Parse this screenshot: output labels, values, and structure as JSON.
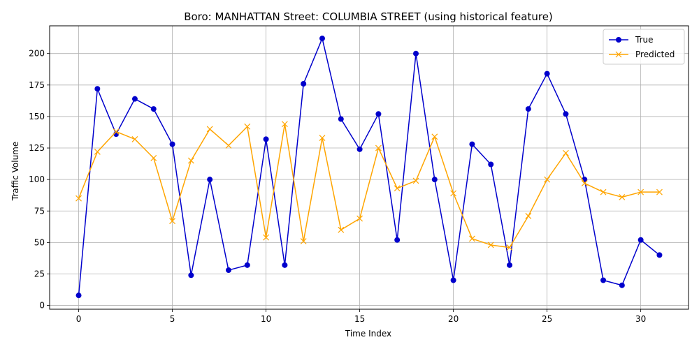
{
  "chart_data": {
    "type": "line",
    "title": "Boro: MANHATTAN Street: COLUMBIA STREET (using historical feature)",
    "xlabel": "Time Index",
    "ylabel": "Traffic Volume",
    "xlim": [
      -1.55,
      32.55
    ],
    "ylim": [
      -3,
      222
    ],
    "xticks": [
      0,
      5,
      10,
      15,
      20,
      25,
      30
    ],
    "yticks": [
      0,
      25,
      50,
      75,
      100,
      125,
      150,
      175,
      200
    ],
    "grid": true,
    "legend_position": "upper right",
    "x": [
      0,
      1,
      2,
      3,
      4,
      5,
      6,
      7,
      8,
      9,
      10,
      11,
      12,
      13,
      14,
      15,
      16,
      17,
      18,
      19,
      20,
      21,
      22,
      23,
      24,
      25,
      26,
      27,
      28,
      29,
      30,
      31
    ],
    "series": [
      {
        "name": "True",
        "color": "#0000cc",
        "marker": "circle",
        "values": [
          8,
          172,
          136,
          164,
          156,
          128,
          24,
          100,
          28,
          32,
          132,
          32,
          176,
          212,
          148,
          124,
          152,
          52,
          200,
          100,
          20,
          128,
          112,
          32,
          156,
          184,
          152,
          100,
          20,
          16,
          52,
          40
        ]
      },
      {
        "name": "Predicted",
        "color": "#ffa500",
        "marker": "x",
        "values": [
          85,
          122,
          138,
          132,
          117,
          67,
          115,
          140,
          127,
          142,
          54,
          144,
          51,
          133,
          60,
          69,
          125,
          93,
          99,
          134,
          89,
          53,
          48,
          46,
          71,
          100,
          121,
          97,
          90,
          86,
          90,
          90
        ]
      }
    ]
  }
}
